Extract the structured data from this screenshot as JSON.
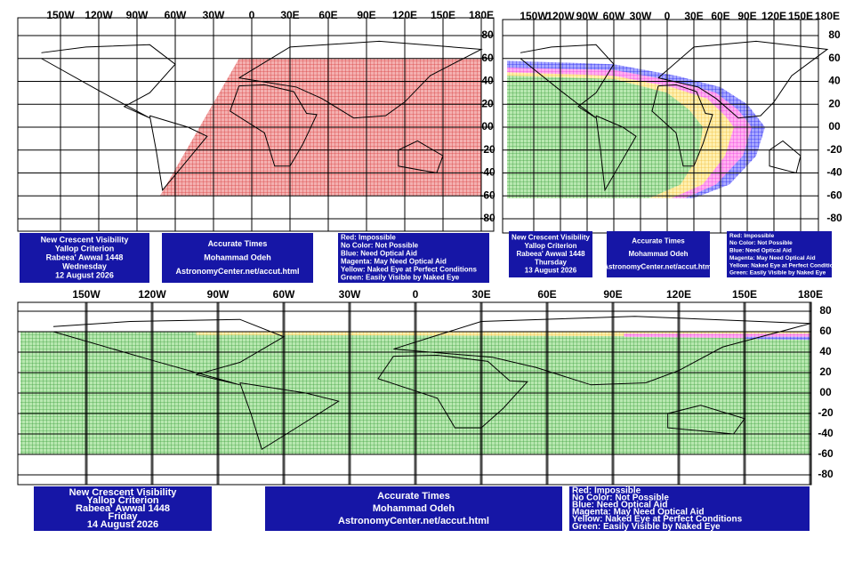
{
  "maps": [
    {
      "lon_labels": [
        "150W",
        "120W",
        "90W",
        "60W",
        "30W",
        "0",
        "30E",
        "60E",
        "90E",
        "120E",
        "150E",
        "180E"
      ],
      "lat_labels": [
        "80",
        "60",
        "40",
        "20",
        "00",
        "-20",
        "-40",
        "-60",
        "-80"
      ],
      "info": {
        "title": [
          "New Crescent Visibility",
          "Yallop Criterion",
          "Rabeea' Awwal 1448",
          "Wednesday",
          "12 August 2026"
        ],
        "times": [
          "Accurate Times",
          "Mohammad Odeh",
          "AstronomyCenter.net/accut.html"
        ],
        "legend": [
          "Red: Impossible",
          "No Color: Not Possible",
          "Blue: Need Optical Aid",
          "Magenta: May Need Optical Aid",
          "Yellow: Naked Eye at Perfect Conditions",
          "Green: Easily Visible by Naked Eye"
        ]
      }
    },
    {
      "lon_labels": [
        "150W",
        "120W",
        "90W",
        "60W",
        "30W",
        "0",
        "30E",
        "60E",
        "90E",
        "120E",
        "150E",
        "180E"
      ],
      "lat_labels": [
        "80",
        "60",
        "40",
        "20",
        "00",
        "-20",
        "-40",
        "-60",
        "-80"
      ],
      "info": {
        "title": [
          "New Crescent Visibility",
          "Yallop Criterion",
          "Rabeea' Awwal 1448",
          "Thursday",
          "13 August 2026"
        ],
        "times": [
          "Accurate Times",
          "Mohammad Odeh",
          "AstronomyCenter.net/accut.html"
        ],
        "legend": [
          "Red: Impossible",
          "No Color: Not Possible",
          "Blue: Need Optical Aid",
          "Magenta: May Need Optical Aid",
          "Yellow: Naked Eye at Perfect Conditions",
          "Green: Easily Visible by Naked Eye"
        ]
      }
    },
    {
      "lon_labels": [
        "150W",
        "120W",
        "90W",
        "60W",
        "30W",
        "0",
        "30E",
        "60E",
        "90E",
        "120E",
        "150E",
        "180E"
      ],
      "lat_labels": [
        "80",
        "60",
        "40",
        "20",
        "00",
        "-20",
        "-40",
        "-60",
        "-80"
      ],
      "info": {
        "title": [
          "New Crescent Visibility",
          "Yallop Criterion",
          "Rabeea' Awwal 1448",
          "Friday",
          "14 August 2026"
        ],
        "times": [
          "Accurate Times",
          "Mohammad Odeh",
          "AstronomyCenter.net/accut.html"
        ],
        "legend": [
          "Red: Impossible",
          "No Color: Not Possible",
          "Blue: Need Optical Aid",
          "Magenta: May Need Optical Aid",
          "Yellow: Naked Eye at Perfect Conditions",
          "Green: Easily Visible by Naked Eye"
        ]
      }
    }
  ]
}
